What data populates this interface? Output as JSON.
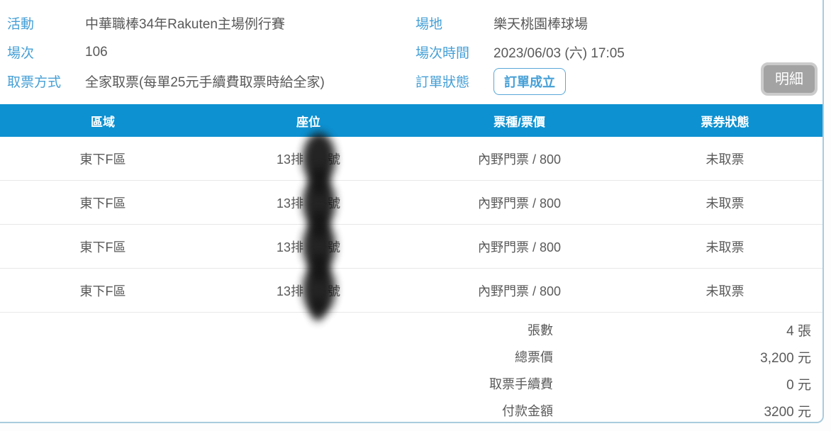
{
  "order_info": {
    "left": [
      {
        "label": "活動",
        "value": "中華職棒34年Rakuten主場例行賽"
      },
      {
        "label": "場次",
        "value": "106"
      },
      {
        "label": "取票方式",
        "value": "全家取票(每單25元手續費取票時給全家)"
      }
    ],
    "right": [
      {
        "label": "場地",
        "value": "樂天桃園棒球場"
      },
      {
        "label": "場次時間",
        "value": "2023/06/03 (六) 17:05"
      },
      {
        "label": "訂單狀態",
        "value": "訂單成立"
      }
    ],
    "detail_button_label": "明細"
  },
  "ticket_table": {
    "columns": [
      "區域",
      "座位",
      "票種/票價",
      "票券狀態"
    ],
    "seat_redacted": true,
    "rows": [
      {
        "area": "東下F區",
        "seat_prefix": "13排",
        "seat_suffix": "號",
        "ticket": "內野門票 / 800",
        "status": "未取票"
      },
      {
        "area": "東下F區",
        "seat_prefix": "13排",
        "seat_suffix": "號",
        "ticket": "內野門票 / 800",
        "status": "未取票"
      },
      {
        "area": "東下F區",
        "seat_prefix": "13排",
        "seat_suffix": "號",
        "ticket": "內野門票 / 800",
        "status": "未取票"
      },
      {
        "area": "東下F區",
        "seat_prefix": "13排",
        "seat_suffix": "號",
        "ticket": "內野門票 / 800",
        "status": "未取票"
      }
    ]
  },
  "summary": {
    "rows": [
      {
        "label": "張數",
        "value": "4 張"
      },
      {
        "label": "總票價",
        "value": "3,200 元"
      },
      {
        "label": "取票手續費",
        "value": "0 元"
      },
      {
        "label": "付款金額",
        "value": "3200 元"
      }
    ]
  },
  "colors": {
    "header_blue": "#0d91d1",
    "label_blue": "#459fd6",
    "panel_border": "#a9cbdd",
    "button_gray": "#a3a3a3",
    "text_gray": "#5a5a5a"
  }
}
